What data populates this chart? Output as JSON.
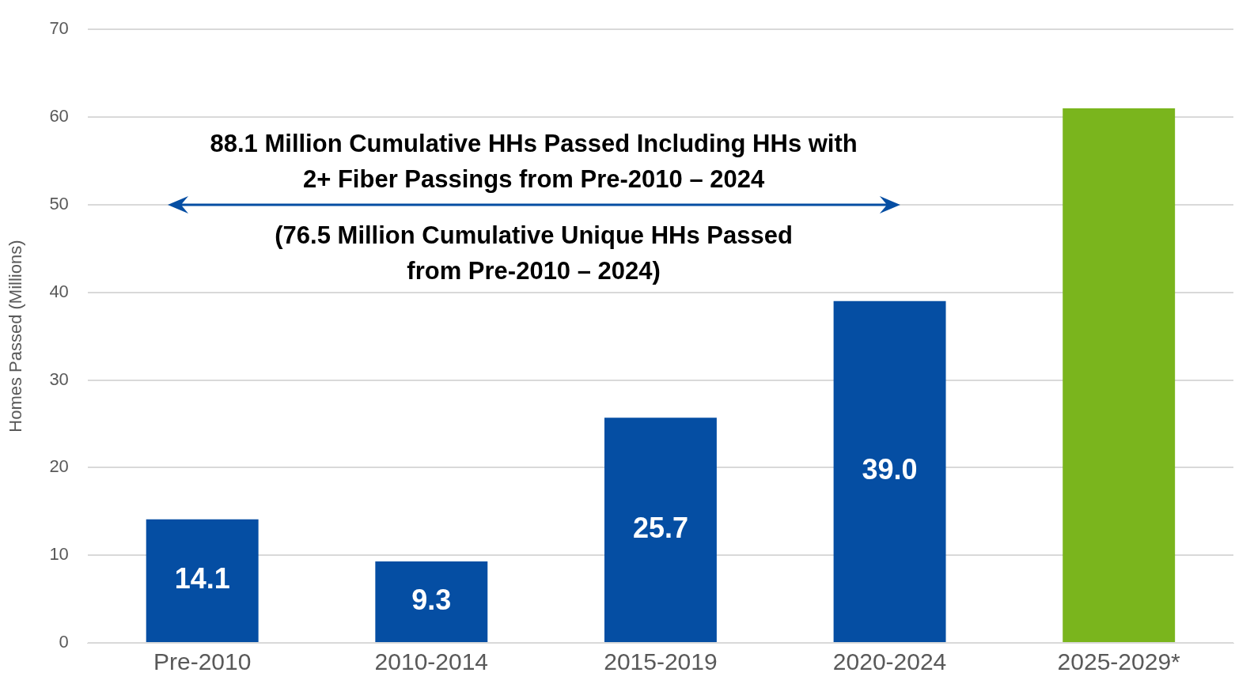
{
  "chart_data": {
    "type": "bar",
    "categories": [
      "Pre-2010",
      "2010-2014",
      "2015-2019",
      "2020-2024",
      "2025-2029*"
    ],
    "values": [
      14.1,
      9.3,
      25.7,
      39.0,
      61.0
    ],
    "colors": [
      "#054ea3",
      "#054ea3",
      "#054ea3",
      "#054ea3",
      "#7ab51d"
    ],
    "value_labels": [
      "14.1",
      "9.3",
      "25.7",
      "39.0",
      null
    ],
    "ylabel": "Homes Passed (Millions)",
    "ylim": [
      0,
      70
    ],
    "yticks": [
      0,
      10,
      20,
      30,
      40,
      50,
      60,
      70
    ],
    "grid": "y",
    "annotations": [
      {
        "text": "88.1 Million Cumulative HHs Passed Including HHs with 2+ Fiber Passings from Pre-2010 – 2024"
      },
      {
        "text": "(76.5 Million Cumulative Unique HHs Passed from Pre-2010 – 2024)"
      }
    ]
  }
}
